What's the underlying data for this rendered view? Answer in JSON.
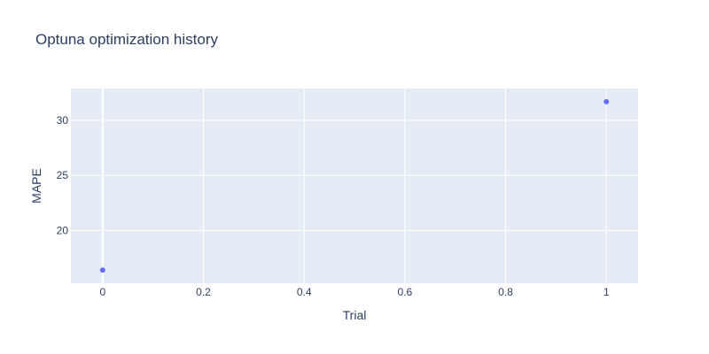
{
  "chart_data": {
    "type": "scatter",
    "title": "Optuna optimization history",
    "xlabel": "Trial",
    "ylabel": "MAPE",
    "xlim": [
      -0.063,
      1.063
    ],
    "ylim": [
      15.2,
      32.9
    ],
    "x_ticks": [
      0,
      0.2,
      0.4,
      0.6,
      0.8,
      1
    ],
    "x_tick_labels": [
      "0",
      "0.2",
      "0.4",
      "0.6",
      "0.8",
      "1"
    ],
    "y_ticks": [
      20,
      25,
      30
    ],
    "y_tick_labels": [
      "20",
      "25",
      "30"
    ],
    "grid": true,
    "series": [
      {
        "x": [
          0,
          1
        ],
        "y": [
          16.4,
          31.7
        ]
      }
    ],
    "colors": {
      "plot_background": "#e5ecf6",
      "grid": "#ffffff",
      "marker": "#636efa",
      "text": "#2a3f5f"
    }
  }
}
